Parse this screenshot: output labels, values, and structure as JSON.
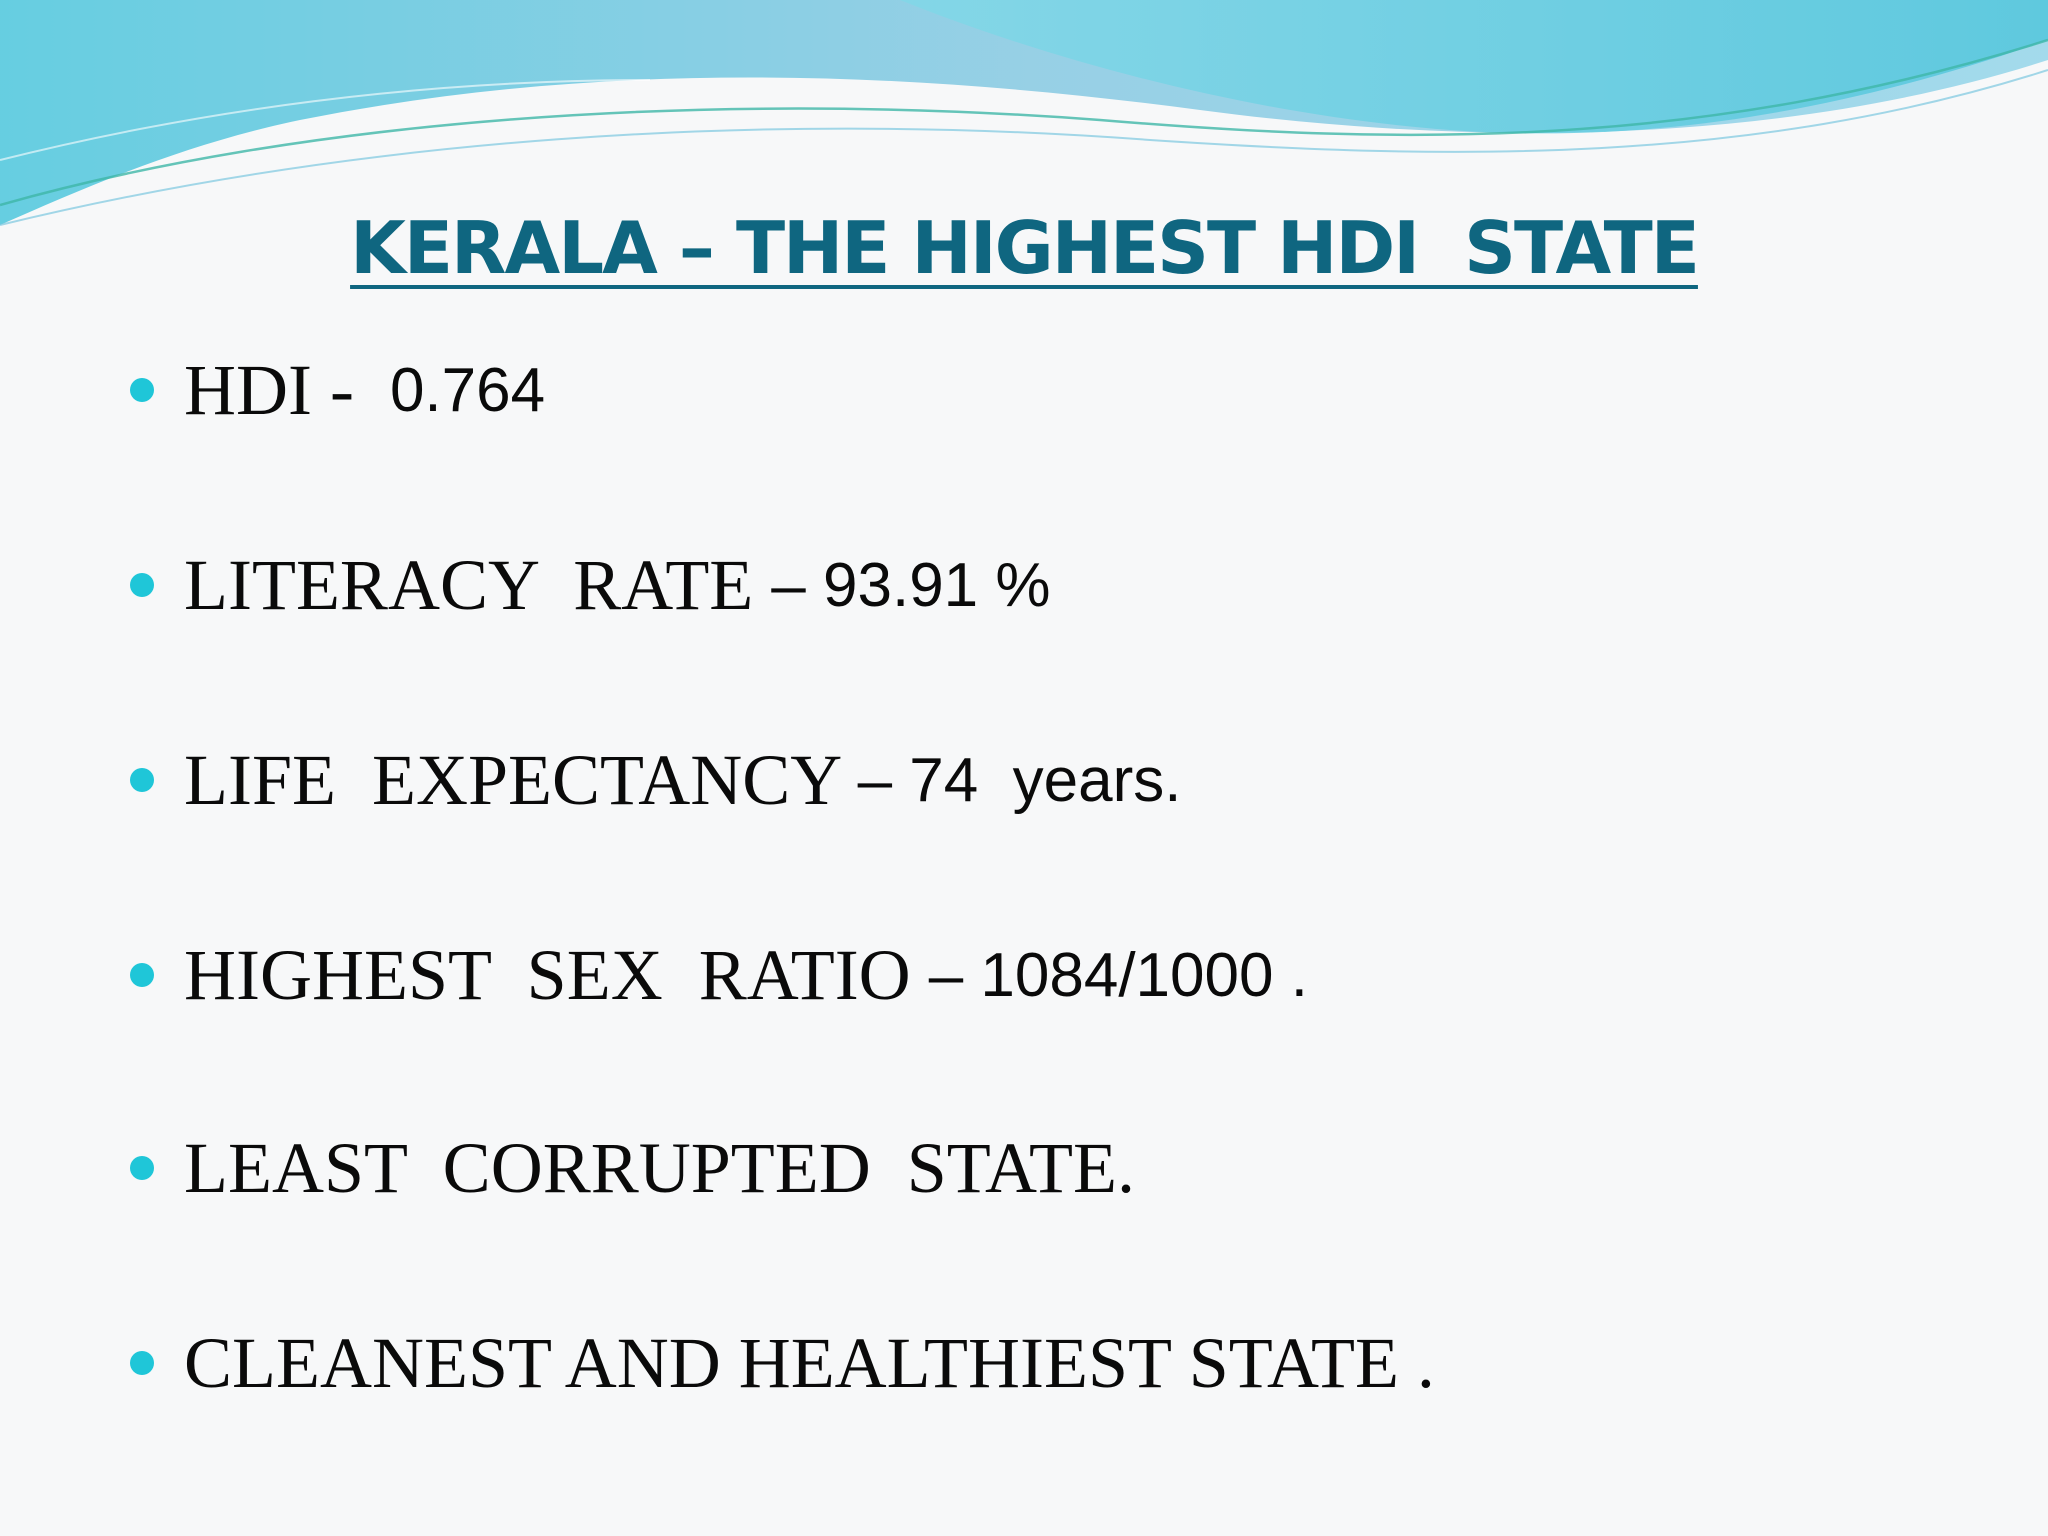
{
  "slide": {
    "title": "KERALA – THE HIGHEST HDI  STATE",
    "colors": {
      "title": "#0f6680",
      "bullet": "#1fc6d8",
      "text": "#0a0a0a",
      "background": "#f7f8f9",
      "wave_accent": "#6fd0e2"
    },
    "bullets": [
      {
        "label": "HDI -  ",
        "value": "0.764"
      },
      {
        "label": "LITERACY  RATE ",
        "value": "– 93.91 %"
      },
      {
        "label": "LIFE  EXPECTANCY ",
        "value": "– 74  years."
      },
      {
        "label": "HIGHEST  SEX  RATIO ",
        "value": "– 1084/1000 ."
      },
      {
        "label": "LEAST  CORRUPTED  STATE.",
        "value": ""
      },
      {
        "label": "CLEANEST AND HEALTHIEST STATE .",
        "value": ""
      }
    ]
  }
}
